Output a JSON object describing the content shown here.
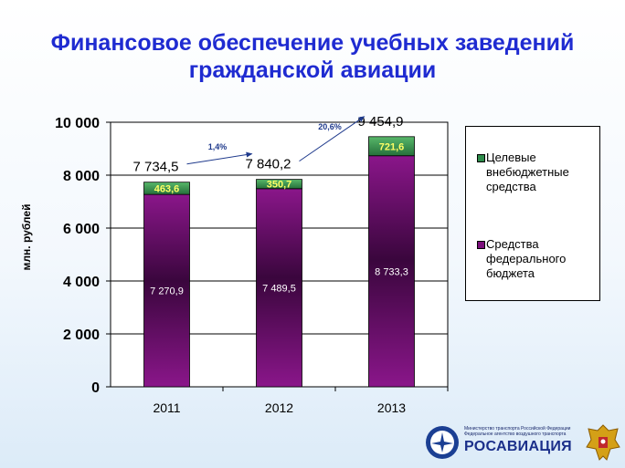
{
  "title": {
    "line1": "Финансовое обеспечение учебных заведений",
    "line2": "гражданской авиации"
  },
  "colors": {
    "title": "#1f2bd1",
    "federal": "#7b0f7b",
    "federal_dark": "#3a063d",
    "extra": "#2e8b4a",
    "extra_label": "#ffff66",
    "arrow": "#1f3a8c"
  },
  "chart_data": {
    "type": "bar",
    "stacked": true,
    "categories": [
      "2011",
      "2012",
      "2013"
    ],
    "series": [
      {
        "name": "Средства федерального бюджета",
        "values": [
          7270.9,
          7489.5,
          8733.3
        ],
        "labels": [
          "7 270,9",
          "7 489,5",
          "8 733,3"
        ]
      },
      {
        "name": "Целевые внебюджетные средства",
        "values": [
          463.6,
          350.7,
          721.6
        ],
        "labels": [
          "463,6",
          "350,7",
          "721,6"
        ]
      }
    ],
    "totals": [
      7734.5,
      7840.2,
      9454.9
    ],
    "total_labels": [
      "7 734,5",
      "7 840,2",
      "9 454,9"
    ],
    "growth": [
      {
        "from": "2011",
        "to": "2012",
        "label": "1,4%"
      },
      {
        "from": "2012",
        "to": "2013",
        "label": "20,6%"
      }
    ],
    "ylabel": "млн. рублей",
    "xlabel": "",
    "ylim": [
      0,
      10000
    ],
    "yticks": [
      0,
      2000,
      4000,
      6000,
      8000,
      10000
    ],
    "ytick_labels": [
      "0",
      "2 000",
      "4 000",
      "6 000",
      "8 000",
      "10 000"
    ],
    "grid": true,
    "legend_position": "right"
  },
  "legend": [
    {
      "label": "Целевые внебюджетные средства",
      "color": "#2e8b4a"
    },
    {
      "label": "Средства федерального бюджета",
      "color": "#7b0f7b"
    }
  ],
  "footer": {
    "ministry_line1": "Министерство транспорта Российской Федерации",
    "ministry_line2": "Федеральное агентство воздушного транспорта",
    "brand": "РОСАВИАЦИЯ"
  }
}
